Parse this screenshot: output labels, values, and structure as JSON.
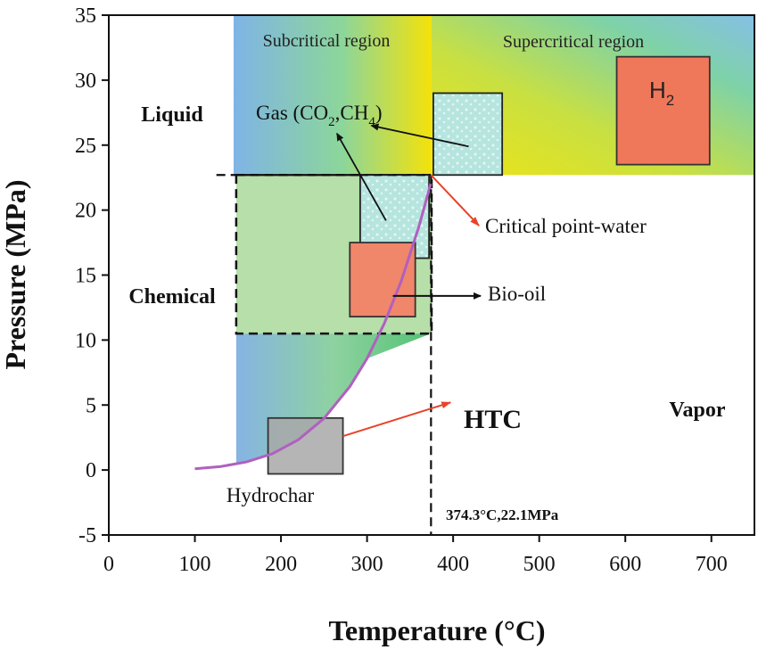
{
  "chart_data": {
    "type": "scatter",
    "title": "",
    "xlabel": "Temperature (°C)",
    "ylabel": "Pressure (MPa)",
    "xlim": [
      0,
      750
    ],
    "ylim": [
      -5,
      35
    ],
    "xticks": [
      0,
      100,
      200,
      300,
      400,
      500,
      600,
      700
    ],
    "yticks": [
      -5,
      0,
      5,
      10,
      15,
      20,
      25,
      30,
      35
    ],
    "critical_point": {
      "x": 374.3,
      "y": 22.1,
      "label": "374.3°C,22.1MPa"
    },
    "saturation_curve": {
      "x": [
        100,
        130,
        160,
        190,
        220,
        250,
        280,
        300,
        320,
        340,
        360,
        374.3
      ],
      "y": [
        0.1,
        0.27,
        0.62,
        1.25,
        2.32,
        3.97,
        6.42,
        8.58,
        11.27,
        14.59,
        18.67,
        22.1
      ]
    },
    "regions": [
      {
        "name": "Subcritical region",
        "x": [
          145,
          375
        ],
        "y": [
          22.7,
          35
        ]
      },
      {
        "name": "Supercritical region",
        "x": [
          375,
          750
        ],
        "y": [
          22.7,
          35
        ]
      },
      {
        "name": "Chemical",
        "x": [
          148,
          375
        ],
        "y": [
          10.5,
          22.7
        ]
      }
    ],
    "phases": [
      "Liquid",
      "Chemical",
      "Vapor"
    ],
    "annotations": {
      "gas": "Gas (CO",
      "gas_sub1": "2",
      "gas_mid": ",CH",
      "gas_sub2": "4",
      "gas_end": ")",
      "h2": "H",
      "h2_sub": "2",
      "critical_point_water": "Critical point-water",
      "bio_oil": "Bio-oil",
      "htc": "HTC",
      "hydrochar": "Hydrochar"
    },
    "products": [
      {
        "name": "H2",
        "x": [
          590,
          698
        ],
        "y": [
          23.5,
          31.8
        ],
        "color": "#f0785a"
      },
      {
        "name": "Gas (supercritical)",
        "x": [
          377,
          457
        ],
        "y": [
          22.7,
          29
        ]
      },
      {
        "name": "Gas (subcritical)",
        "x": [
          292,
          372
        ],
        "y": [
          16.3,
          22.7
        ]
      },
      {
        "name": "Bio-oil",
        "x": [
          280,
          356
        ],
        "y": [
          11.8,
          17.5
        ],
        "color": "#f0866a"
      },
      {
        "name": "Hydrochar",
        "x": [
          185,
          272
        ],
        "y": [
          -0.3,
          4
        ]
      }
    ]
  },
  "colors": {
    "curve": "#b060c0",
    "arrow_red": "#e8432a",
    "arrow_black": "#111111",
    "h2_fill": "#f0785a",
    "biooil_fill": "#f0866a",
    "hydrochar_fill": "#a8a8a8"
  }
}
